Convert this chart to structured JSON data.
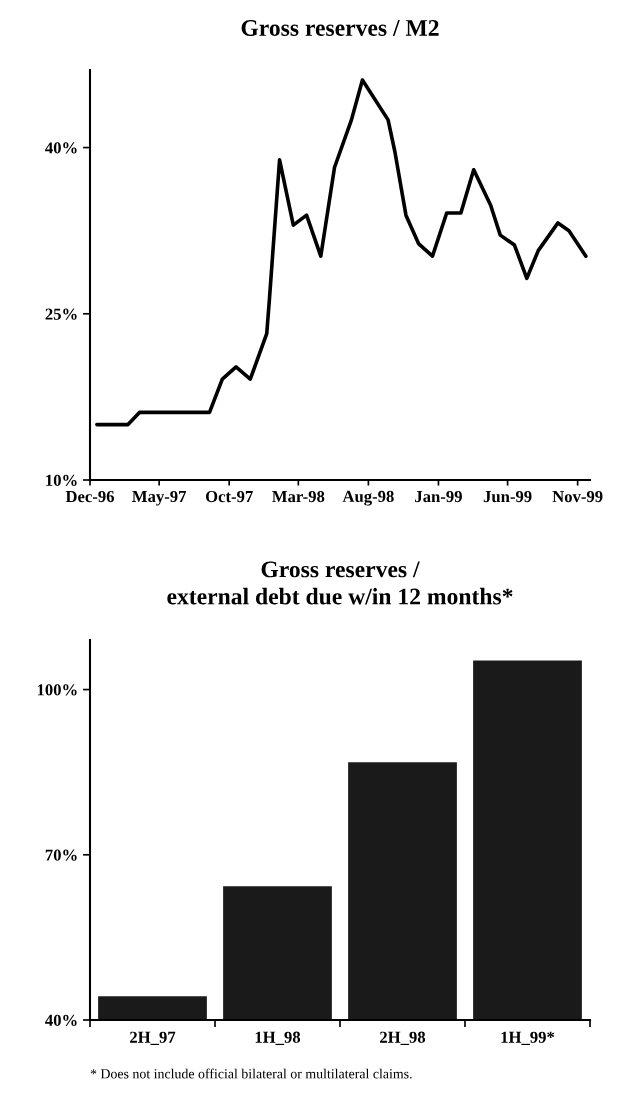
{
  "chart_data": [
    {
      "type": "line",
      "title": "Gross reserves / M2",
      "x": [
        "1996-12-16",
        "1997-02-22",
        "1997-03-19",
        "1997-08-19",
        "1997-09-16",
        "1997-10-16",
        "1997-11-16",
        "1997-12-22",
        "1997-12-28",
        "1998-01-19",
        "1998-02-18",
        "1998-03-19",
        "1998-04-19",
        "1998-05-19",
        "1998-06-25",
        "1998-07-19",
        "1998-09-13",
        "1998-09-28",
        "1998-10-22",
        "1998-11-19",
        "1998-12-19",
        "1999-01-19",
        "1999-02-19",
        "1999-03-19",
        "1999-04-25",
        "1999-05-16",
        "1999-06-16",
        "1999-07-13",
        "1999-08-07",
        "1999-09-19",
        "1999-10-13",
        "1999-11-19"
      ],
      "values": [
        15.0,
        15.0,
        16.1,
        16.1,
        19.1,
        20.2,
        19.1,
        23.2,
        26.4,
        38.9,
        33.0,
        33.9,
        30.2,
        38.2,
        42.5,
        46.1,
        42.5,
        39.6,
        33.9,
        31.3,
        30.2,
        34.1,
        34.1,
        38.0,
        34.8,
        32.1,
        31.2,
        28.2,
        30.7,
        33.2,
        32.5,
        30.2
      ],
      "color": "#000000",
      "xlim": [
        "1996-12-01",
        "1999-11-28"
      ],
      "xticks": [
        {
          "value": "1996-12",
          "label": "Dec-96"
        },
        {
          "value": "1997-05",
          "label": "May-97"
        },
        {
          "value": "1997-10",
          "label": "Oct-97"
        },
        {
          "value": "1998-03",
          "label": "Mar-98"
        },
        {
          "value": "1998-08",
          "label": "Aug-98"
        },
        {
          "value": "1999-01",
          "label": "Jan-99"
        },
        {
          "value": "1999-06",
          "label": "Jun-99"
        },
        {
          "value": "1999-11",
          "label": "Nov-99"
        }
      ],
      "ylim": [
        10,
        47
      ],
      "yticks": [
        {
          "value": 10,
          "label": "10%"
        },
        {
          "value": 25,
          "label": "25%"
        },
        {
          "value": 40,
          "label": "40%"
        }
      ],
      "line_style": "solid",
      "marker": "none"
    },
    {
      "type": "bar",
      "title": "Gross reserves /\nexternal debt due w/in 12 months*",
      "categories": [
        "2H_97",
        "1H_98",
        "2H_98",
        "1H_99*"
      ],
      "values": [
        44.3,
        64.3,
        86.8,
        105.3
      ],
      "color": "#1a1a1a",
      "ylim": [
        40,
        109
      ],
      "yticks": [
        {
          "value": 40,
          "label": "40%"
        },
        {
          "value": 70,
          "label": "70%"
        },
        {
          "value": 100,
          "label": "100%"
        }
      ],
      "annotations": [
        "* Does not include official bilateral or multilateral claims."
      ]
    }
  ]
}
